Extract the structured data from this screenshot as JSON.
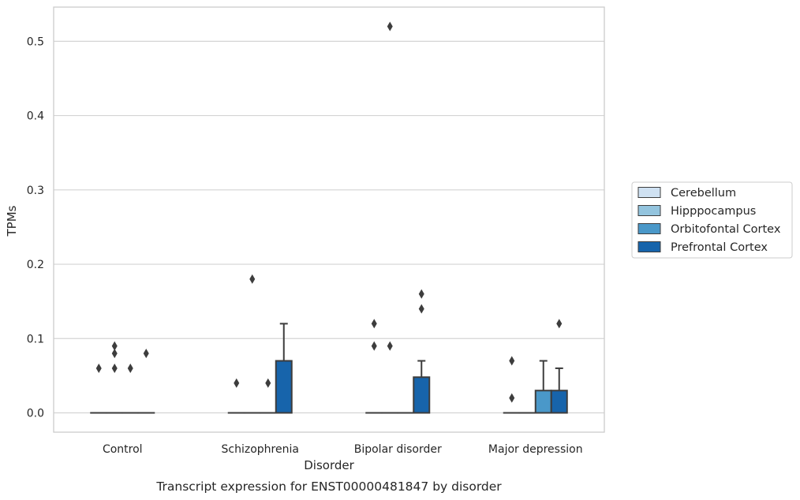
{
  "chart_data": {
    "type": "box",
    "xlabel": "Disorder",
    "ylabel": "TPMs",
    "caption": "Transcript expression for ENST00000481847 by disorder",
    "ylim": [
      -0.026,
      0.546
    ],
    "yticks": [
      0.0,
      0.1,
      0.2,
      0.3,
      0.4,
      0.5
    ],
    "ytick_labels": [
      "0.0",
      "0.1",
      "0.2",
      "0.3",
      "0.4",
      "0.5"
    ],
    "grid": "horizontal",
    "legend_position": "right",
    "categories": [
      "Control",
      "Schizophrenia",
      "Bipolar disorder",
      "Major depression"
    ],
    "series": [
      {
        "name": "Cerebellum",
        "color": "#cfe1f2",
        "boxes": [
          {
            "q1": 0,
            "median": 0,
            "q3": 0,
            "whisker_low": 0,
            "whisker_high": 0,
            "outliers": [
              0.06
            ]
          },
          {
            "q1": 0,
            "median": 0,
            "q3": 0,
            "whisker_low": 0,
            "whisker_high": 0,
            "outliers": [
              0.04
            ]
          },
          {
            "q1": 0,
            "median": 0,
            "q3": 0,
            "whisker_low": 0,
            "whisker_high": 0,
            "outliers": [
              0.09,
              0.12
            ]
          },
          {
            "q1": 0,
            "median": 0,
            "q3": 0,
            "whisker_low": 0,
            "whisker_high": 0,
            "outliers": [
              0.02,
              0.07
            ]
          }
        ]
      },
      {
        "name": "Hipppocampus",
        "color": "#93c4de",
        "boxes": [
          {
            "q1": 0,
            "median": 0,
            "q3": 0,
            "whisker_low": 0,
            "whisker_high": 0,
            "outliers": [
              0.06,
              0.08,
              0.09
            ]
          },
          {
            "q1": 0,
            "median": 0,
            "q3": 0,
            "whisker_low": 0,
            "whisker_high": 0,
            "outliers": [
              0.18
            ]
          },
          {
            "q1": 0,
            "median": 0,
            "q3": 0,
            "whisker_low": 0,
            "whisker_high": 0,
            "outliers": [
              0.09,
              0.52
            ]
          },
          {
            "q1": 0,
            "median": 0,
            "q3": 0,
            "whisker_low": 0,
            "whisker_high": 0,
            "outliers": []
          }
        ]
      },
      {
        "name": "Orbitofontal Cortex",
        "color": "#4a98c9",
        "boxes": [
          {
            "q1": 0,
            "median": 0,
            "q3": 0,
            "whisker_low": 0,
            "whisker_high": 0,
            "outliers": [
              0.06
            ]
          },
          {
            "q1": 0,
            "median": 0,
            "q3": 0,
            "whisker_low": 0,
            "whisker_high": 0,
            "outliers": [
              0.04
            ]
          },
          {
            "q1": 0,
            "median": 0,
            "q3": 0,
            "whisker_low": 0,
            "whisker_high": 0,
            "outliers": []
          },
          {
            "q1": 0,
            "median": 0,
            "q3": 0.03,
            "whisker_low": 0,
            "whisker_high": 0.07,
            "outliers": []
          }
        ]
      },
      {
        "name": "Prefrontal Cortex",
        "color": "#1764ab",
        "boxes": [
          {
            "q1": 0,
            "median": 0,
            "q3": 0,
            "whisker_low": 0,
            "whisker_high": 0,
            "outliers": [
              0.08
            ]
          },
          {
            "q1": 0,
            "median": 0,
            "q3": 0.07,
            "whisker_low": 0,
            "whisker_high": 0.12,
            "outliers": []
          },
          {
            "q1": 0,
            "median": 0,
            "q3": 0.048,
            "whisker_low": 0,
            "whisker_high": 0.07,
            "outliers": [
              0.14,
              0.16
            ]
          },
          {
            "q1": 0,
            "median": 0,
            "q3": 0.03,
            "whisker_low": 0,
            "whisker_high": 0.06,
            "outliers": [
              0.12
            ]
          }
        ]
      }
    ]
  },
  "colors": {
    "grid": "#d4d4d4",
    "frame": "#cccccc",
    "line": "#3d3d3d",
    "text": "#262626"
  }
}
